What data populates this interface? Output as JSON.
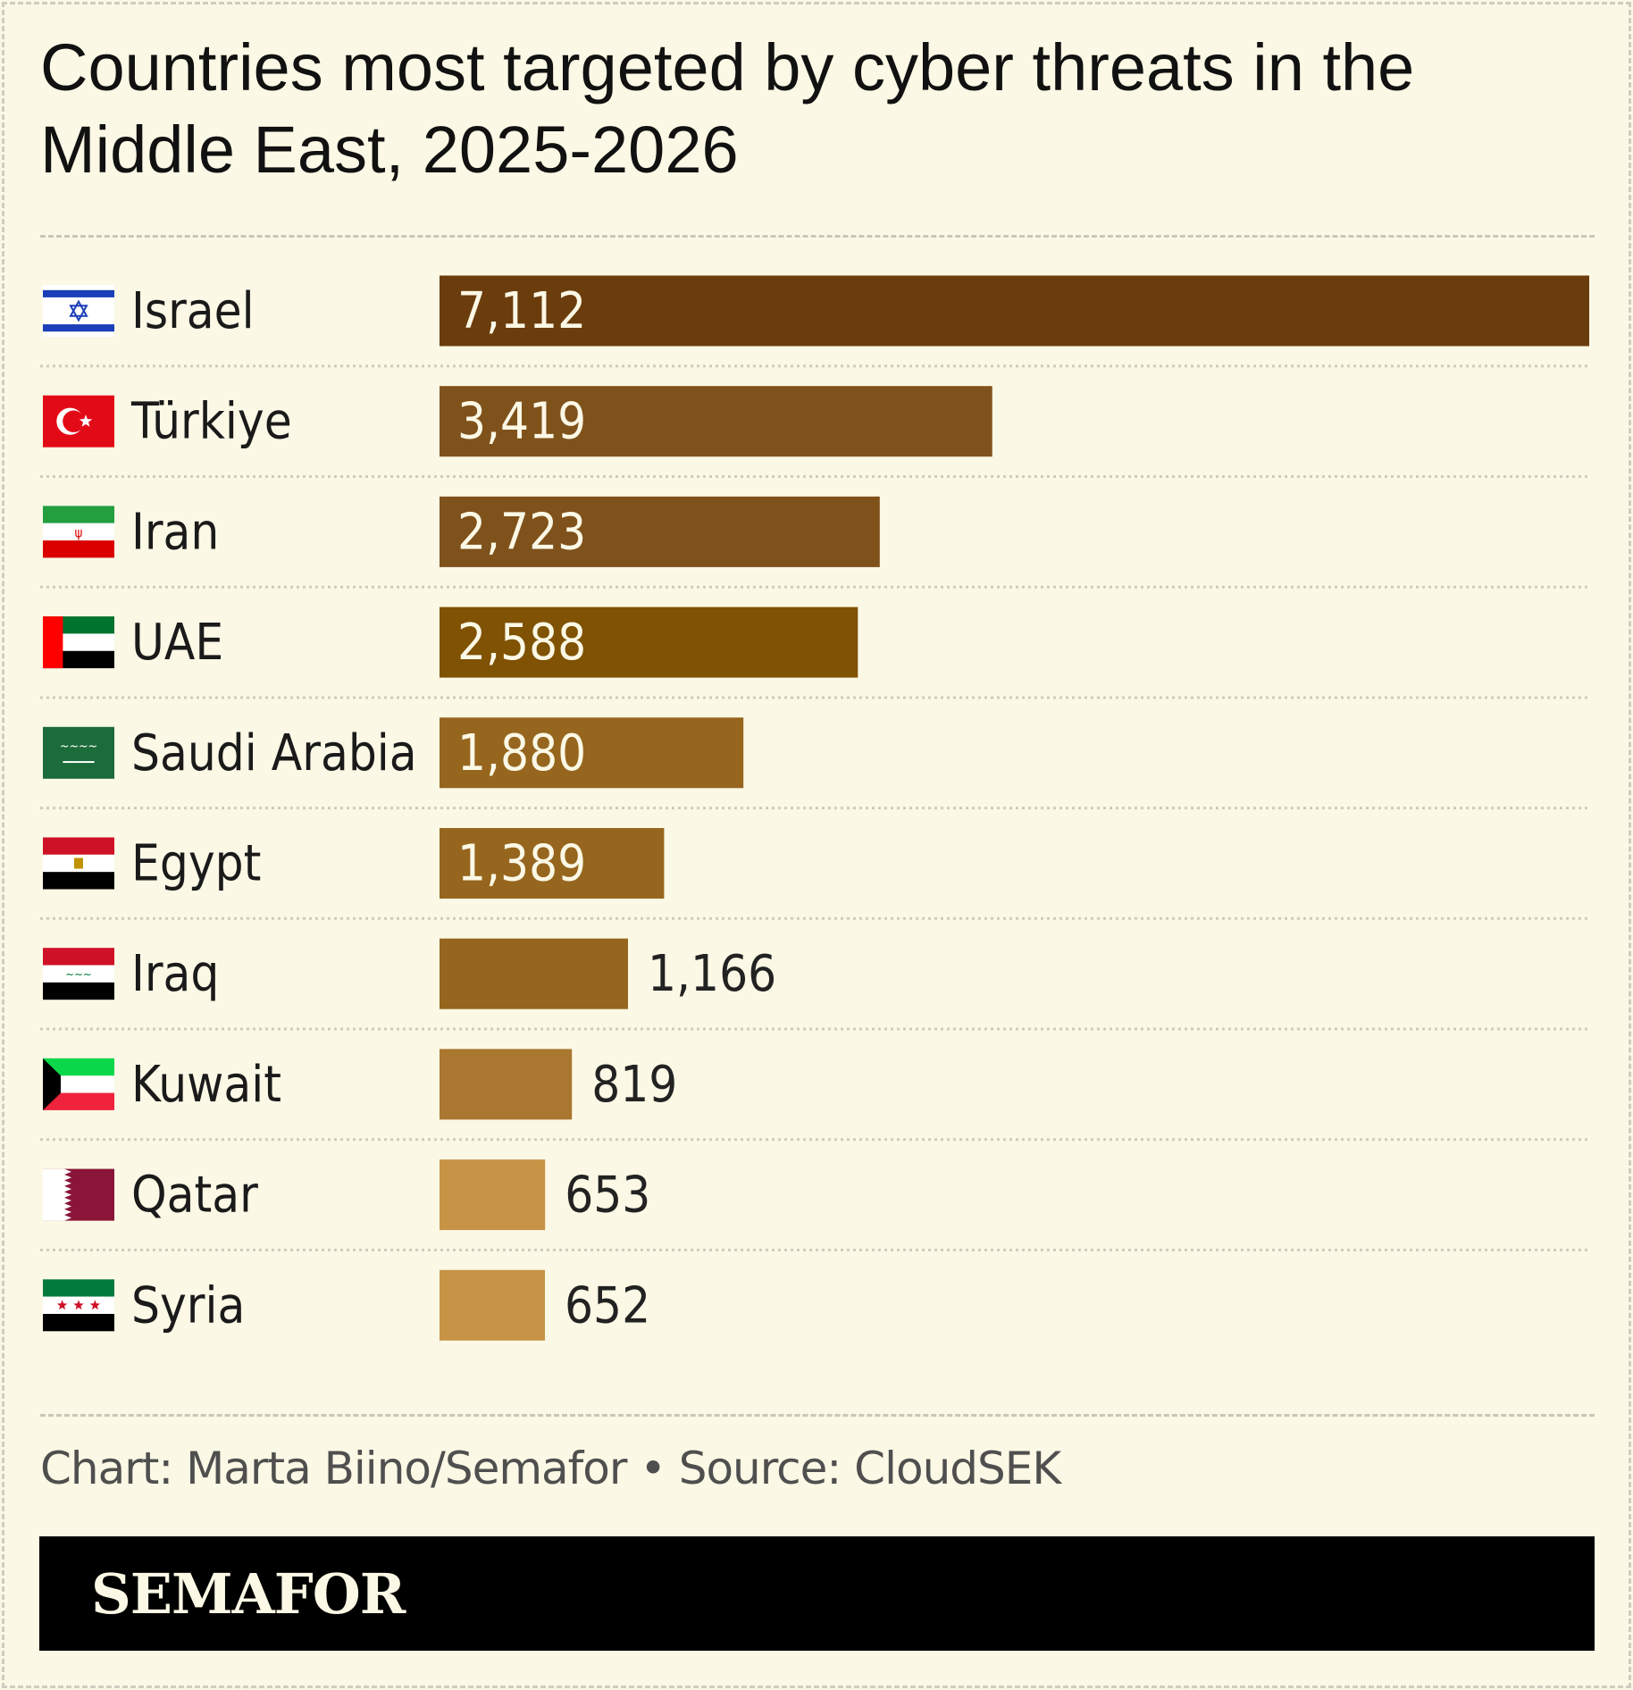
{
  "title": "Countries most targeted by cyber threats in the Middle East, 2025-2026",
  "credit": "Chart: Marta Biino/Semafor • Source: CloudSEK",
  "brand": "SEMAFOR",
  "colors": {
    "background": "#fbf8e5",
    "bar_label_inside": "#fbf8e5",
    "bar_label_outside": "#222222"
  },
  "chart_data": {
    "type": "bar",
    "orientation": "horizontal",
    "grid": false,
    "categories": [
      "Israel",
      "Türkiye",
      "Iran",
      "UAE",
      "Saudi Arabia",
      "Egypt",
      "Iraq",
      "Kuwait",
      "Qatar",
      "Syria"
    ],
    "values": [
      7112,
      3419,
      2723,
      2588,
      1880,
      1389,
      1166,
      819,
      653,
      652
    ],
    "value_labels": [
      "7,112",
      "3,419",
      "2,723",
      "2,588",
      "1,880",
      "1,389",
      "1,166",
      "819",
      "653",
      "652"
    ],
    "bar_colors": [
      "#6b3d0d",
      "#7f521c",
      "#7f521c",
      "#7f5204",
      "#96661e",
      "#96661e",
      "#96661e",
      "#a9772f",
      "#c79346",
      "#c79346"
    ],
    "flag_icons": [
      "israel-flag-icon",
      "turkiye-flag-icon",
      "iran-flag-icon",
      "uae-flag-icon",
      "saudi-arabia-flag-icon",
      "egypt-flag-icon",
      "iraq-flag-icon",
      "kuwait-flag-icon",
      "qatar-flag-icon",
      "syria-flag-icon"
    ],
    "xlim": [
      0,
      7112
    ]
  }
}
